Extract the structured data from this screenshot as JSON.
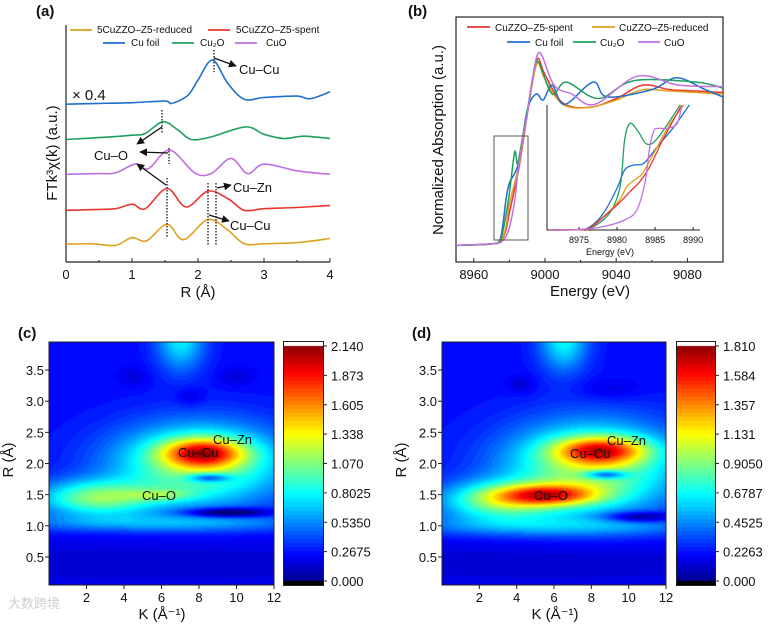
{
  "watermark": "大数跨境",
  "chart_data": [
    {
      "panel": "(a)",
      "type": "line",
      "xlabel": "R (Å)",
      "ylabel": "FTk³χ(k) (a.u.)",
      "xlim": [
        0,
        4
      ],
      "ylim": [
        0,
        10
      ],
      "xticks": [
        "0",
        "1",
        "2",
        "3",
        "4"
      ],
      "scale_note": "× 0.4",
      "legend": [
        "5CuZZO–Z5-reduced",
        "5CuZZO–Z5-spent",
        "Cu foil",
        "Cu₂O",
        "CuO"
      ],
      "annotations": {
        "cu_cu_top": "Cu–Cu",
        "cu_o": "Cu–O",
        "cu_zn": "Cu–Zn",
        "cu_cu_bottom": "Cu–Cu"
      },
      "series": [
        {
          "name": "5CuZZO–Z5-reduced",
          "color": "#e0a020",
          "x": [
            0,
            0.4,
            0.75,
            1.0,
            1.22,
            1.53,
            1.78,
            2.15,
            2.45,
            2.7,
            3.0,
            3.5,
            4.0
          ],
          "y": [
            0.75,
            0.77,
            0.7,
            1.03,
            0.89,
            1.59,
            0.94,
            1.79,
            1.35,
            0.77,
            0.77,
            0.82,
            0.99
          ]
        },
        {
          "name": "5CuZZO–Z5-spent",
          "color": "#e8352e",
          "x": [
            0,
            0.4,
            0.75,
            1.0,
            1.2,
            1.53,
            1.82,
            2.15,
            2.45,
            2.7,
            3.0,
            3.5,
            4.0
          ],
          "y": [
            2.18,
            2.21,
            2.25,
            2.44,
            2.25,
            3.1,
            2.32,
            2.99,
            2.68,
            2.18,
            2.25,
            2.3,
            2.39
          ]
        },
        {
          "name": "Cu foil",
          "color": "#1f6fd0",
          "x": [
            0,
            0.5,
            1.0,
            1.5,
            1.6,
            1.85,
            2.0,
            2.22,
            2.45,
            2.7,
            3.0,
            3.5,
            3.7,
            4.0
          ],
          "y": [
            6.66,
            6.69,
            6.72,
            6.79,
            6.69,
            7.04,
            7.68,
            8.52,
            7.54,
            6.87,
            6.94,
            7.0,
            6.89,
            7.18
          ]
        },
        {
          "name": "Cu₂O",
          "color": "#20a060",
          "x": [
            0,
            0.5,
            1.0,
            1.2,
            1.47,
            1.7,
            1.9,
            2.2,
            2.72,
            3.0,
            3.3,
            3.6,
            4.0
          ],
          "y": [
            5.17,
            5.25,
            5.35,
            5.42,
            5.92,
            5.56,
            5.17,
            5.28,
            5.7,
            5.39,
            5.21,
            5.31,
            5.21
          ]
        },
        {
          "name": "CuO",
          "color": "#c070e0",
          "x": [
            0,
            0.5,
            0.75,
            1.05,
            1.25,
            1.57,
            1.95,
            2.2,
            2.5,
            2.75,
            3.0,
            3.5,
            4.0
          ],
          "y": [
            3.7,
            3.73,
            3.76,
            4.13,
            3.94,
            4.72,
            3.76,
            3.73,
            4.37,
            3.73,
            4.13,
            3.85,
            3.7
          ]
        }
      ]
    },
    {
      "panel": "(b)",
      "type": "line",
      "xlabel": "Energy (eV)",
      "ylabel": "Normalized Absorption (a.u.)",
      "xlim": [
        8950,
        9100
      ],
      "ylim": [
        -0.112,
        1.539
      ],
      "xticks": [
        "8960",
        "9000",
        "9040",
        "9080"
      ],
      "legend": [
        "CuZZO–Z5-spent",
        "CuZZO–Z5-reduced",
        "Cu foil",
        "Cu₂O",
        "CuO"
      ],
      "series": [
        {
          "name": "CuZZO–Z5-spent",
          "color": "#e8352e",
          "x": [
            8950,
            8970,
            8975,
            8978,
            8980,
            8985,
            8988,
            8990,
            8993,
            8996,
            9000,
            9010,
            9025,
            9040,
            9055,
            9070,
            9085,
            9100
          ],
          "y": [
            0,
            0.01,
            0.03,
            0.1,
            0.22,
            0.5,
            0.72,
            0.88,
            1.1,
            1.26,
            1.15,
            0.96,
            0.93,
            0.99,
            1.08,
            1.05,
            1.04,
            1.03
          ]
        },
        {
          "name": "CuZZO–Z5-reduced",
          "color": "#e0a020",
          "x": [
            8950,
            8970,
            8975,
            8978,
            8980,
            8985,
            8988,
            8990,
            8993,
            8996,
            9000,
            9010,
            9025,
            9040,
            9055,
            9070,
            9085,
            9100
          ],
          "y": [
            0,
            0.01,
            0.03,
            0.12,
            0.28,
            0.52,
            0.74,
            0.88,
            1.1,
            1.23,
            1.12,
            0.95,
            0.93,
            0.98,
            1.05,
            1.04,
            1.03,
            1.02
          ]
        },
        {
          "name": "Cu foil",
          "color": "#1f6fd0",
          "x": [
            8950,
            8970,
            8975,
            8978,
            8980,
            8985,
            8990,
            8995,
            8999,
            9004,
            9011,
            9027,
            9035,
            9060,
            9074,
            9090,
            9100
          ],
          "y": [
            0,
            0.01,
            0.05,
            0.3,
            0.42,
            0.55,
            0.91,
            1.02,
            0.98,
            1.08,
            0.95,
            1.1,
            1.0,
            1.05,
            1.13,
            1.05,
            1.0
          ]
        },
        {
          "name": "Cu₂O",
          "color": "#20a060",
          "x": [
            8950,
            8970,
            8975,
            8978,
            8980,
            8983,
            8984.5,
            8987,
            8990,
            8993,
            8996,
            9004,
            9012,
            9030,
            9050,
            9085,
            9100
          ],
          "y": [
            0,
            0.01,
            0.04,
            0.2,
            0.35,
            0.63,
            0.55,
            0.7,
            0.9,
            1.12,
            1.24,
            1.02,
            1.1,
            0.99,
            1.11,
            1.1,
            1.06
          ]
        },
        {
          "name": "CuO",
          "color": "#c070e0",
          "x": [
            8950,
            8970,
            8975,
            8978,
            8980,
            8983,
            8985,
            8988,
            8990,
            8993,
            8997,
            9005,
            9015,
            9028,
            9052,
            9075,
            9100
          ],
          "y": [
            0,
            0.01,
            0.02,
            0.06,
            0.12,
            0.3,
            0.52,
            0.75,
            0.88,
            1.12,
            1.3,
            1.08,
            1.02,
            0.95,
            1.14,
            1.08,
            1.07
          ]
        }
      ],
      "inset": {
        "xlabel": "Energy (eV)",
        "xlim": [
          8970.8,
          8990.9
        ],
        "ylim": [
          0,
          1
        ],
        "xticks": [
          "8975",
          "8980",
          "8985",
          "8990"
        ],
        "series": [
          {
            "name": "Cu foil",
            "color": "#1f6fd0",
            "x": [
              8971,
              8975,
              8976.5,
              8978.2,
              8980,
              8981,
              8982.2,
              8983.5,
              8985.3,
              8987.5,
              8989.5
            ],
            "y": [
              0,
              0.003,
              0.027,
              0.133,
              0.333,
              0.48,
              0.52,
              0.533,
              0.667,
              0.827,
              1.0
            ]
          },
          {
            "name": "Cu₂O",
            "color": "#20a060",
            "x": [
              8971,
              8975,
              8976.5,
              8979,
              8980.4,
              8981,
              8981.7,
              8982.8,
              8983.9,
              8985.3,
              8988.3
            ],
            "y": [
              0,
              0.003,
              0.013,
              0.133,
              0.347,
              0.72,
              0.853,
              0.787,
              0.688,
              0.733,
              1.0
            ]
          },
          {
            "name": "CuZZO–Z5-reduced",
            "color": "#e0a020",
            "x": [
              8971,
              8975,
              8976.5,
              8980,
              8981.3,
              8982.6,
              8983.5,
              8985.3,
              8987,
              8988.8
            ],
            "y": [
              0,
              0.003,
              0.019,
              0.213,
              0.347,
              0.413,
              0.467,
              0.667,
              0.853,
              1.0
            ]
          },
          {
            "name": "CuZZO–Z5-spent",
            "color": "#e8352e",
            "x": [
              8971,
              8975,
              8976.5,
              8980,
              8981.7,
              8983,
              8984.3,
              8986,
              8988.5
            ],
            "y": [
              0,
              0.003,
              0.019,
              0.2,
              0.307,
              0.387,
              0.507,
              0.72,
              1.0
            ]
          },
          {
            "name": "CuO",
            "color": "#c070e0",
            "x": [
              8971,
              8975,
              8978.2,
              8981,
              8982.6,
              8983.7,
              8984.3,
              8984.8,
              8985.3,
              8986.6,
              8987.9,
              8988.5
            ],
            "y": [
              0,
              0.003,
              0.027,
              0.08,
              0.16,
              0.387,
              0.667,
              0.787,
              0.813,
              0.813,
              0.853,
              1.0
            ]
          }
        ]
      }
    },
    {
      "panel": "(c)",
      "type": "heatmap",
      "xlabel": "K (Å⁻¹)",
      "ylabel": "R (Å)",
      "xlim": [
        0,
        12
      ],
      "ylim": [
        0.05,
        3.95
      ],
      "xticks": [
        "2",
        "4",
        "6",
        "8",
        "10",
        "12"
      ],
      "yticks": [
        "0.5",
        "1.0",
        "1.5",
        "2.0",
        "2.5",
        "3.0",
        "3.5"
      ],
      "colorbar": {
        "min": 0,
        "max": 2.14,
        "labels": [
          "2.140",
          "1.873",
          "1.605",
          "1.338",
          "1.070",
          "0.8025",
          "0.5350",
          "0.2675",
          "0.000"
        ]
      },
      "annotations": {
        "cu_zn": "Cu–Zn",
        "cu_cu": "Cu–Cu",
        "cu_o": "Cu–O"
      },
      "base": 0.28,
      "components": [
        {
          "k": 8,
          "r": 2.0,
          "sk": 3.2,
          "sr": 0.45,
          "a": 0.85
        },
        {
          "k": 2.5,
          "r": 1.45,
          "sk": 2.2,
          "sr": 0.2,
          "a": 0.75
        },
        {
          "k": 8.2,
          "r": 2.18,
          "sk": 1.5,
          "sr": 0.16,
          "a": 1.05
        },
        {
          "k": 6,
          "r": 1.5,
          "sk": 1.3,
          "sr": 0.07,
          "a": 0.3
        },
        {
          "k": 8.5,
          "r": 1.78,
          "sk": 0.8,
          "sr": 0.05,
          "a": -0.6
        },
        {
          "k": 9.5,
          "r": 1.22,
          "sk": 1.5,
          "sr": 0.05,
          "a": -0.6
        },
        {
          "k": 7,
          "r": 4.0,
          "sk": 0.9,
          "sr": 0.35,
          "a": 0.5
        },
        {
          "k": 6,
          "r": 1.05,
          "sk": 6,
          "sr": 0.1,
          "a": 0.3
        },
        {
          "k": 6,
          "r": 0.4,
          "sk": 12,
          "sr": 0.3,
          "a": -0.12
        },
        {
          "k": 7.5,
          "r": 3.08,
          "sk": 0.5,
          "sr": 0.1,
          "a": -0.12
        },
        {
          "k": 4.5,
          "r": 3.4,
          "sk": 0.5,
          "sr": 0.1,
          "a": -0.1
        },
        {
          "k": 10,
          "r": 3.4,
          "sk": 0.6,
          "sr": 0.1,
          "a": -0.1
        }
      ]
    },
    {
      "panel": "(d)",
      "type": "heatmap",
      "xlabel": "K (Å⁻¹)",
      "ylabel": "R (Å)",
      "xlim": [
        0,
        12
      ],
      "ylim": [
        0.05,
        3.95
      ],
      "xticks": [
        "2",
        "4",
        "6",
        "8",
        "10",
        "12"
      ],
      "yticks": [
        "0.5",
        "1.0",
        "1.5",
        "2.0",
        "2.5",
        "3.0",
        "3.5"
      ],
      "colorbar": {
        "min": 0,
        "max": 1.81,
        "labels": [
          "1.810",
          "1.584",
          "1.357",
          "1.131",
          "0.9050",
          "0.6787",
          "0.4525",
          "0.2263",
          "0.000"
        ]
      },
      "annotations": {
        "cu_zn": "Cu–Zn",
        "cu_cu": "Cu–Cu",
        "cu_o": "Cu–O"
      },
      "base": 0.24,
      "components": [
        {
          "k": 8,
          "r": 1.95,
          "sk": 3.2,
          "sr": 0.5,
          "a": 0.75
        },
        {
          "k": 3,
          "r": 1.4,
          "sk": 2.2,
          "sr": 0.22,
          "a": 0.6
        },
        {
          "k": 8.5,
          "r": 2.22,
          "sk": 1.7,
          "sr": 0.15,
          "a": 0.85
        },
        {
          "k": 5.7,
          "r": 1.5,
          "sk": 1.9,
          "sr": 0.12,
          "a": 0.85
        },
        {
          "k": 8.7,
          "r": 1.83,
          "sk": 0.8,
          "sr": 0.05,
          "a": -0.55
        },
        {
          "k": 10.5,
          "r": 1.15,
          "sk": 1.3,
          "sr": 0.06,
          "a": -0.4
        },
        {
          "k": 6.5,
          "r": 4.0,
          "sk": 0.9,
          "sr": 0.35,
          "a": 0.45
        },
        {
          "k": 6,
          "r": 1.0,
          "sk": 6,
          "sr": 0.12,
          "a": 0.25
        },
        {
          "k": 6,
          "r": 0.4,
          "sk": 12,
          "sr": 0.3,
          "a": -0.1
        },
        {
          "k": 4.2,
          "r": 3.28,
          "sk": 0.5,
          "sr": 0.1,
          "a": -0.1
        },
        {
          "k": 9,
          "r": 3.2,
          "sk": 1.2,
          "sr": 0.12,
          "a": -0.08
        }
      ]
    }
  ]
}
